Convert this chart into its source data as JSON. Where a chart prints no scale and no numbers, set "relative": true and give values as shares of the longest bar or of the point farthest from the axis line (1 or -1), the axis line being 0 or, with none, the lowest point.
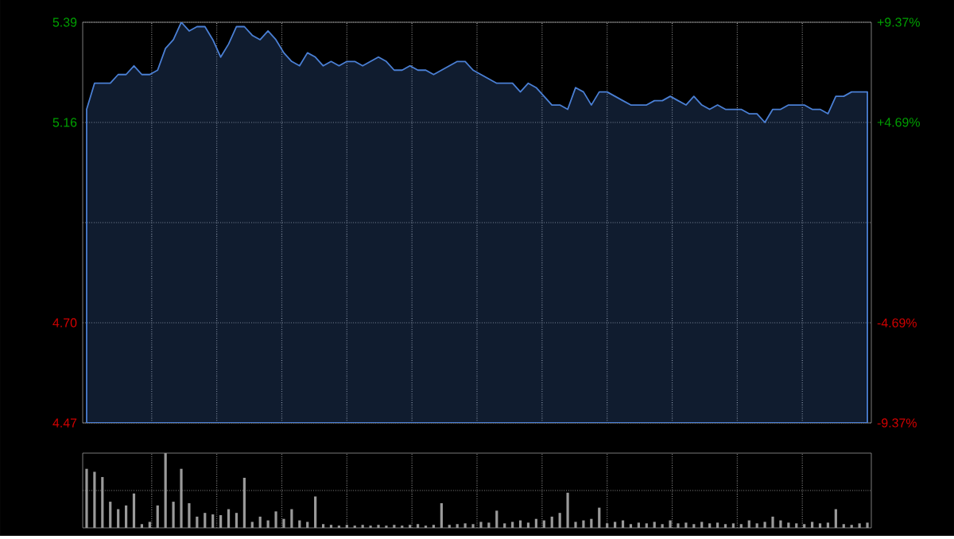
{
  "chart_data": [
    {
      "type": "area",
      "categories": [
        null,
        null,
        null,
        null,
        null,
        null,
        null,
        null,
        null,
        null,
        null,
        null,
        null,
        null,
        null,
        null,
        null,
        null,
        null,
        null,
        null,
        null,
        null,
        null,
        null,
        null,
        null,
        null,
        null,
        null,
        null,
        null,
        null,
        null,
        null,
        null,
        null,
        null,
        null,
        null,
        null,
        null,
        null,
        null,
        null,
        null,
        null,
        null,
        null,
        null,
        null,
        null,
        null,
        null,
        null,
        null,
        null,
        null,
        null,
        null,
        null,
        null,
        null,
        null,
        null,
        null,
        null,
        null,
        null,
        null,
        null,
        null,
        null,
        null,
        null,
        null,
        null,
        null,
        null,
        null,
        null,
        null,
        null,
        null,
        null,
        null,
        null,
        null,
        null,
        null,
        null,
        null,
        null,
        null,
        null,
        null,
        null,
        null,
        null,
        null
      ],
      "series": [
        {
          "color": "#4a7fd4",
          "values": [
            5.19,
            5.25,
            5.25,
            5.25,
            5.27,
            5.27,
            5.29,
            5.27,
            5.27,
            5.28,
            5.33,
            5.35,
            5.39,
            5.37,
            5.38,
            5.38,
            5.35,
            5.31,
            5.34,
            5.38,
            5.38,
            5.36,
            5.35,
            5.37,
            5.35,
            5.32,
            5.3,
            5.29,
            5.32,
            5.31,
            5.29,
            5.3,
            5.29,
            5.3,
            5.3,
            5.29,
            5.3,
            5.31,
            5.3,
            5.28,
            5.28,
            5.29,
            5.28,
            5.28,
            5.27,
            5.28,
            5.29,
            5.3,
            5.3,
            5.28,
            5.27,
            5.26,
            5.25,
            5.25,
            5.25,
            5.23,
            5.25,
            5.24,
            5.22,
            5.2,
            5.2,
            5.19,
            5.24,
            5.23,
            5.2,
            5.23,
            5.23,
            5.22,
            5.21,
            5.2,
            5.2,
            5.2,
            5.21,
            5.21,
            5.22,
            5.21,
            5.2,
            5.22,
            5.2,
            5.19,
            5.2,
            5.19,
            5.19,
            5.19,
            5.18,
            5.18,
            5.16,
            5.19,
            5.19,
            5.2,
            5.2,
            5.2,
            5.19,
            5.19,
            5.18,
            5.22,
            5.22,
            5.23,
            5.23,
            5.23
          ]
        }
      ],
      "ylim": [
        4.47,
        5.39
      ],
      "yticks": [
        4.47,
        {
          "value": 4.7,
          "label": "4.70"
        },
        {
          "value": 4.93,
          "label": null
        },
        5.16,
        5.39
      ],
      "y2lim": [
        -9.37,
        9.37
      ],
      "y2ticks": [
        {
          "value": -9.37,
          "label": "-9.37%"
        },
        {
          "value": -4.69,
          "label": "-4.69%"
        },
        {
          "value": 0,
          "label": null
        },
        {
          "value": 4.69,
          "label": "+4.69%"
        },
        {
          "value": 9.37,
          "label": "+9.37%"
        }
      ],
      "grid": true,
      "tick_labels": "y"
    },
    {
      "type": "bar",
      "relative": true,
      "grid": true,
      "categories": [
        null,
        null,
        null,
        null,
        null,
        null,
        null,
        null,
        null,
        null,
        null,
        null,
        null,
        null,
        null,
        null,
        null,
        null,
        null,
        null,
        null,
        null,
        null,
        null,
        null,
        null,
        null,
        null,
        null,
        null,
        null,
        null,
        null,
        null,
        null,
        null,
        null,
        null,
        null,
        null,
        null,
        null,
        null,
        null,
        null,
        null,
        null,
        null,
        null,
        null,
        null,
        null,
        null,
        null,
        null,
        null,
        null,
        null,
        null,
        null,
        null,
        null,
        null,
        null,
        null,
        null,
        null,
        null,
        null,
        null,
        null,
        null,
        null,
        null,
        null,
        null,
        null,
        null,
        null,
        null,
        null,
        null,
        null,
        null,
        null,
        null,
        null,
        null,
        null,
        null,
        null,
        null,
        null,
        null,
        null,
        null,
        null,
        null,
        null,
        null
      ],
      "series": [
        {
          "color": "#9a9a9a",
          "values": [
            0.79,
            0.75,
            0.68,
            0.35,
            0.25,
            0.3,
            0.46,
            0.05,
            0.08,
            0.3,
            1.0,
            0.35,
            0.79,
            0.33,
            0.15,
            0.2,
            0.18,
            0.17,
            0.25,
            0.2,
            0.67,
            0.08,
            0.15,
            0.1,
            0.22,
            0.12,
            0.25,
            0.1,
            0.08,
            0.42,
            0.05,
            0.04,
            0.03,
            0.04,
            0.03,
            0.04,
            0.03,
            0.04,
            0.03,
            0.04,
            0.03,
            0.04,
            0.05,
            0.03,
            0.04,
            0.33,
            0.04,
            0.05,
            0.06,
            0.05,
            0.08,
            0.07,
            0.23,
            0.06,
            0.08,
            0.1,
            0.07,
            0.12,
            0.1,
            0.15,
            0.2,
            0.47,
            0.08,
            0.1,
            0.12,
            0.27,
            0.06,
            0.08,
            0.1,
            0.05,
            0.07,
            0.06,
            0.08,
            0.05,
            0.1,
            0.06,
            0.07,
            0.05,
            0.08,
            0.06,
            0.07,
            0.05,
            0.06,
            0.05,
            0.1,
            0.06,
            0.08,
            0.15,
            0.1,
            0.07,
            0.06,
            0.05,
            0.08,
            0.06,
            0.07,
            0.25,
            0.05,
            0.04,
            0.06,
            0.07
          ]
        }
      ]
    }
  ]
}
